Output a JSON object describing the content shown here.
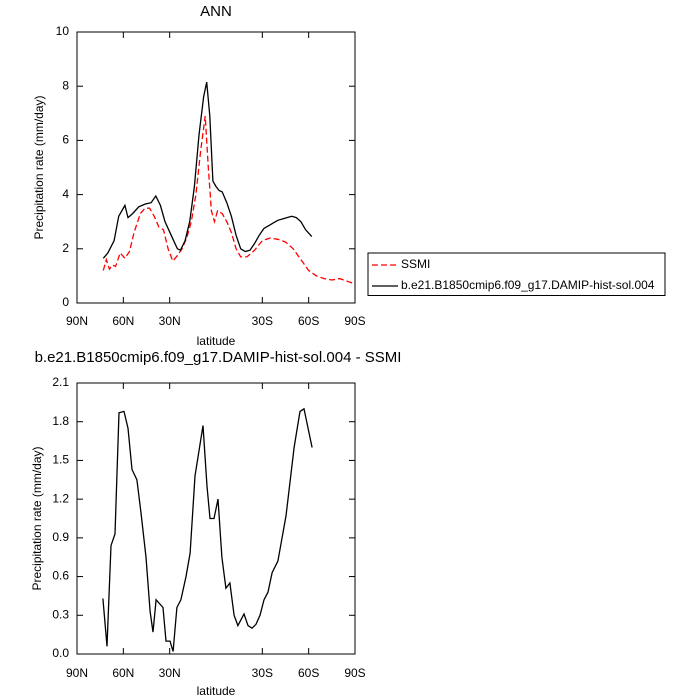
{
  "chart_data": [
    {
      "type": "line",
      "title": "ANN",
      "x_label": "latitude",
      "y_label": "Precipitation rate (mm/day)",
      "xlim": [
        90,
        -90
      ],
      "ylim": [
        0,
        10
      ],
      "xticks": [
        {
          "value": 90,
          "label": "90N"
        },
        {
          "value": 60,
          "label": "60N"
        },
        {
          "value": 30,
          "label": "30N"
        },
        {
          "value": -30,
          "label": "30S"
        },
        {
          "value": -60,
          "label": "60S"
        },
        {
          "value": -90,
          "label": "90S"
        }
      ],
      "yticks": [
        0,
        2,
        4,
        6,
        8,
        10
      ],
      "legend": "right",
      "series": [
        {
          "name": "SSMI",
          "color": "#ff0000",
          "dash": true,
          "x": [
            73,
            71,
            69,
            67,
            65,
            62,
            59,
            56,
            53,
            49,
            46,
            43,
            40,
            37,
            34,
            31,
            28,
            25,
            22,
            19,
            16,
            13,
            10,
            7,
            5,
            3,
            1,
            -1,
            -4,
            -7,
            -10,
            -13,
            -16,
            -20,
            -25,
            -30,
            -35,
            -40,
            -45,
            -50,
            -55,
            -60,
            -65,
            -70,
            -75,
            -80,
            -85,
            -89
          ],
          "values": [
            1.2,
            1.6,
            1.25,
            1.4,
            1.35,
            1.85,
            1.65,
            1.9,
            2.6,
            3.3,
            3.5,
            3.5,
            3.2,
            2.8,
            2.7,
            2.0,
            1.55,
            1.75,
            2.0,
            2.4,
            3.0,
            4.0,
            5.6,
            6.9,
            5.0,
            3.4,
            3.0,
            3.4,
            3.3,
            3.0,
            2.6,
            2.0,
            1.7,
            1.7,
            1.95,
            2.3,
            2.4,
            2.35,
            2.25,
            2.0,
            1.6,
            1.2,
            1.0,
            0.9,
            0.85,
            0.9,
            0.8,
            0.72
          ]
        },
        {
          "name": "b.e21.B1850cmip6.f09_g17.DAMIP-hist-sol.004",
          "color": "#000000",
          "dash": false,
          "x": [
            73,
            70,
            66,
            63,
            59,
            57,
            54,
            50,
            46,
            42,
            39,
            36,
            33,
            29,
            25,
            23,
            20,
            17,
            14,
            11,
            8,
            6,
            4,
            2,
            0,
            -2,
            -4,
            -7,
            -10,
            -13,
            -16,
            -19,
            -22,
            -25,
            -28,
            -31,
            -34,
            -37,
            -40,
            -43,
            -46,
            -49,
            -52,
            -55,
            -58,
            -62
          ],
          "values": [
            1.65,
            1.85,
            2.3,
            3.2,
            3.6,
            3.15,
            3.3,
            3.55,
            3.65,
            3.7,
            3.95,
            3.6,
            3.0,
            2.5,
            2.0,
            1.95,
            2.3,
            3.0,
            4.3,
            6.2,
            7.6,
            8.15,
            6.9,
            4.5,
            4.3,
            4.15,
            4.1,
            3.7,
            3.2,
            2.5,
            2.0,
            1.9,
            1.95,
            2.2,
            2.5,
            2.75,
            2.85,
            2.95,
            3.05,
            3.1,
            3.15,
            3.2,
            3.15,
            3.0,
            2.7,
            2.45
          ]
        }
      ]
    },
    {
      "type": "line",
      "title": "b.e21.B1850cmip6.f09_g17.DAMIP-hist-sol.004 - SSMI",
      "x_label": "latitude",
      "y_label": "Precipitation rate (mm/day)",
      "xlim": [
        90,
        -90
      ],
      "ylim": [
        0,
        2.1
      ],
      "xticks": [
        {
          "value": 90,
          "label": "90N"
        },
        {
          "value": 60,
          "label": "60N"
        },
        {
          "value": 30,
          "label": "30N"
        },
        {
          "value": -30,
          "label": "30S"
        },
        {
          "value": -60,
          "label": "60S"
        },
        {
          "value": -90,
          "label": "90S"
        }
      ],
      "yticks": [
        {
          "value": 0,
          "label": "0.0"
        },
        0.3,
        0.6,
        0.9,
        1.2,
        1.5,
        1.8,
        2.1
      ],
      "color": "#000000",
      "x": [
        73.2,
        70.6,
        68,
        65.4,
        62.8,
        59.6,
        57,
        54.4,
        51.2,
        48.6,
        45.3,
        42.7,
        40.8,
        38.8,
        34.3,
        32.4,
        29.8,
        27.8,
        25.3,
        22.7,
        19.4,
        16.8,
        13.6,
        8.4,
        5.8,
        3.9,
        1.3,
        -1.3,
        -3.8,
        -6.4,
        -9,
        -11.7,
        -14.2,
        -18.1,
        -20.7,
        -23.3,
        -25.9,
        -28.5,
        -31.1,
        -33.7,
        -36.3,
        -40.1,
        -45.3,
        -50.6,
        -54.4,
        -57,
        -62.2
      ],
      "values": [
        0.43,
        0.06,
        0.84,
        0.93,
        1.87,
        1.88,
        1.75,
        1.43,
        1.35,
        1.1,
        0.75,
        0.33,
        0.17,
        0.42,
        0.36,
        0.1,
        0.1,
        0.02,
        0.36,
        0.42,
        0.6,
        0.78,
        1.38,
        1.77,
        1.3,
        1.05,
        1.05,
        1.2,
        0.75,
        0.51,
        0.55,
        0.3,
        0.22,
        0.31,
        0.22,
        0.2,
        0.23,
        0.3,
        0.42,
        0.48,
        0.63,
        0.72,
        1.07,
        1.6,
        1.88,
        1.9,
        1.6
      ]
    }
  ]
}
